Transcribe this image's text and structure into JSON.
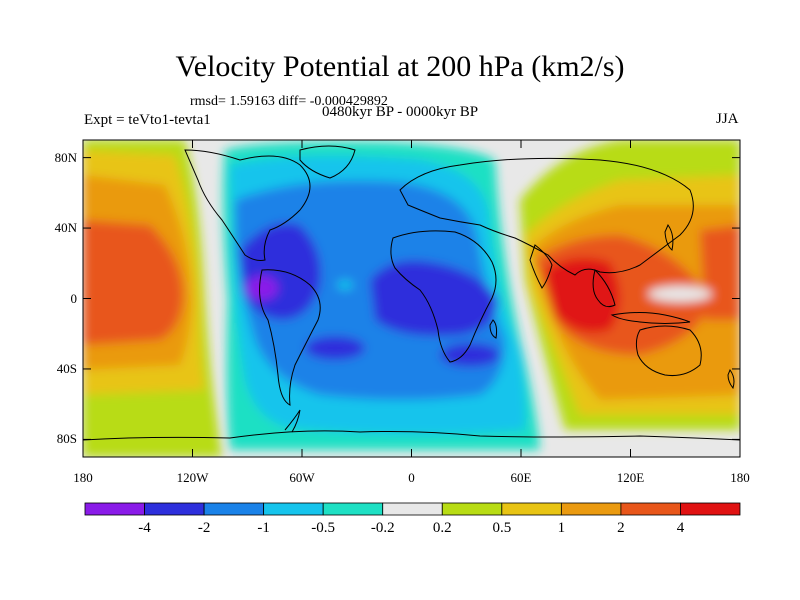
{
  "title": "Velocity Potential at 200 hPa (km2/s)",
  "stats": "rmsd= 1.59163  diff= -0.000429892",
  "left_label": "Expt = teVto1-tevta1",
  "center_label": "0480kyr BP - 0000kyr BP",
  "right_label": "JJA",
  "lat_labels": [
    "80N",
    "40N",
    "0",
    "40S",
    "80S"
  ],
  "lat_values": [
    80,
    40,
    0,
    -40,
    -80
  ],
  "lon_labels": [
    "180",
    "120W",
    "60W",
    "0",
    "60E",
    "120E",
    "180"
  ],
  "lon_values": [
    -180,
    -120,
    -60,
    0,
    60,
    120,
    180
  ],
  "colorbar": {
    "colors": [
      "#8a1be8",
      "#2d2fdc",
      "#1a82e8",
      "#16c4ec",
      "#1ee0c4",
      "#e8e8e8",
      "#b8dc14",
      "#e8c414",
      "#ea9a10",
      "#e8561a",
      "#e01212"
    ],
    "labels": [
      "-4",
      "-2",
      "-1",
      "-0.5",
      "-0.2",
      "0.2",
      "0.5",
      "1",
      "2",
      "4"
    ]
  }
}
